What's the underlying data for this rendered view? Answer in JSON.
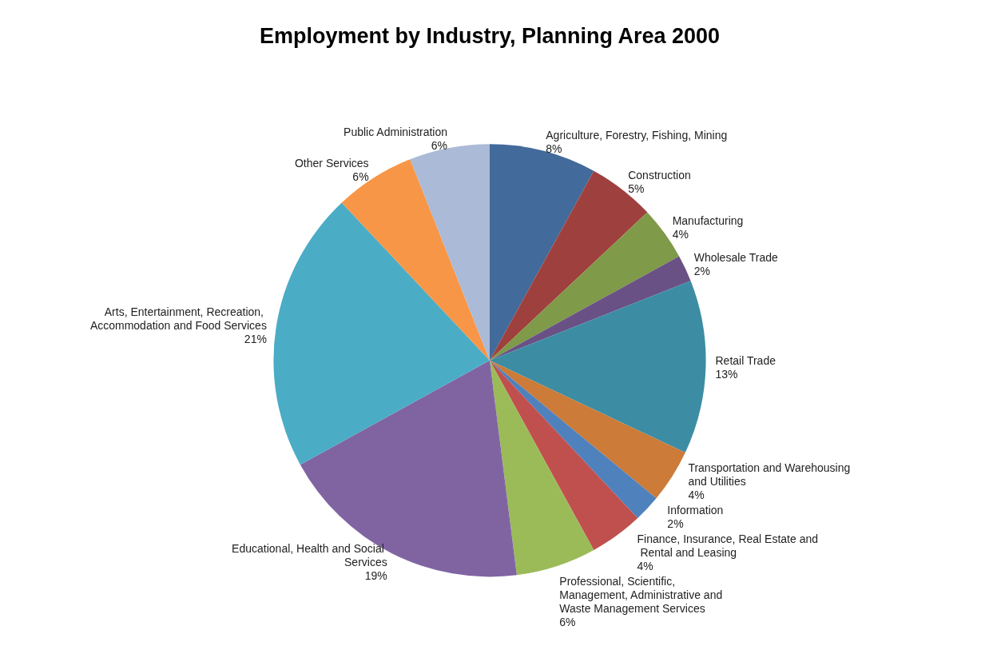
{
  "chart_data": {
    "type": "pie",
    "title": "Employment by Industry, Planning Area 2000",
    "categories": [
      "Agriculture, Forestry, Fishing, Mining",
      "Construction",
      "Manufacturing",
      "Wholesale Trade",
      "Retail Trade",
      "Transportation and Warehousing and Utilities",
      "Information",
      "Finance, Insurance, Real Estate and Rental and Leasing",
      "Professional, Scientific, Management, Administrative and Waste Management Services",
      "Educational, Health and Social Services",
      "Arts, Entertainment, Recreation, Accommodation and Food Services",
      "Other Services",
      "Public Administration"
    ],
    "values": [
      8,
      5,
      4,
      2,
      13,
      4,
      2,
      4,
      6,
      19,
      21,
      6,
      6
    ],
    "value_labels": [
      "8%",
      "5%",
      "4%",
      "2%",
      "13%",
      "4%",
      "2%",
      "4%",
      "6%",
      "19%",
      "21%",
      "6%",
      "6%"
    ],
    "colors": [
      "#426a9a",
      "#9e413e",
      "#7f9a48",
      "#695185",
      "#3c8da3",
      "#cc7b38",
      "#4f81bd",
      "#c0504d",
      "#9bbb59",
      "#8064a2",
      "#4bacc6",
      "#f79646",
      "#aabad7"
    ],
    "legend": false
  }
}
